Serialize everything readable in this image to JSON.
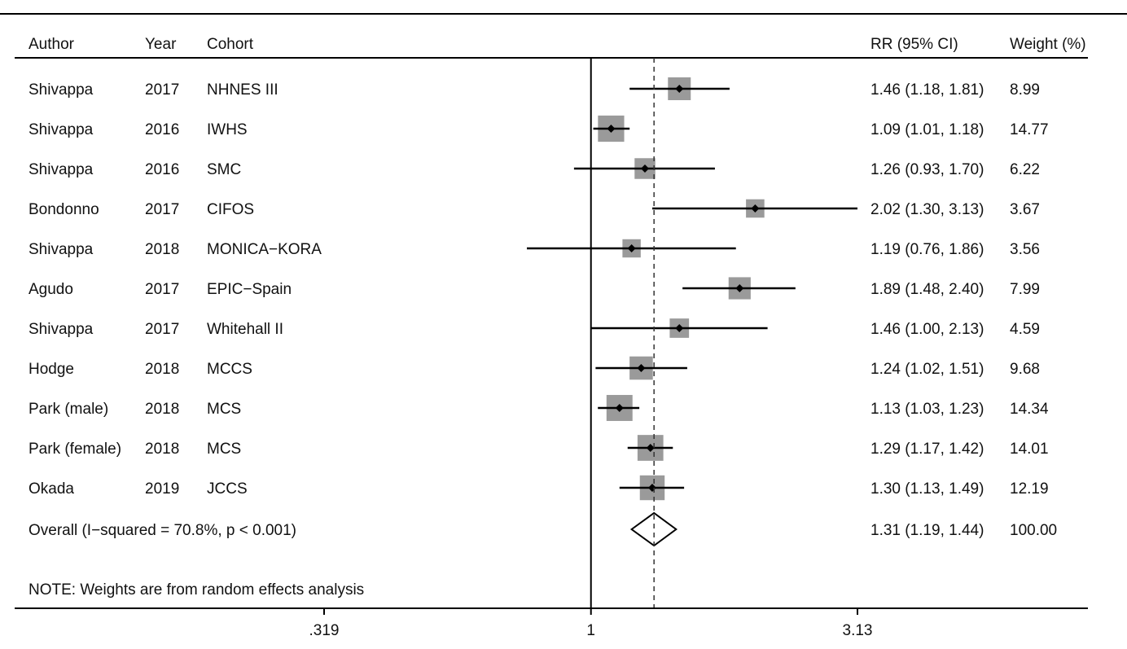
{
  "chart_data": {
    "type": "forest",
    "headers": {
      "author": "Author",
      "year": "Year",
      "cohort": "Cohort",
      "rr": "RR (95% CI)",
      "weight": "Weight (%)"
    },
    "studies": [
      {
        "author": "Shivappa",
        "year": "2017",
        "cohort": "NHNES III",
        "rr": 1.46,
        "lo": 1.18,
        "hi": 1.81,
        "rr_text": "1.46 (1.18, 1.81)",
        "weight": 8.99,
        "weight_text": "8.99"
      },
      {
        "author": "Shivappa",
        "year": "2016",
        "cohort": "IWHS",
        "rr": 1.09,
        "lo": 1.01,
        "hi": 1.18,
        "rr_text": "1.09 (1.01, 1.18)",
        "weight": 14.77,
        "weight_text": "14.77"
      },
      {
        "author": "Shivappa",
        "year": "2016",
        "cohort": "SMC",
        "rr": 1.26,
        "lo": 0.93,
        "hi": 1.7,
        "rr_text": "1.26 (0.93, 1.70)",
        "weight": 6.22,
        "weight_text": "6.22"
      },
      {
        "author": "Bondonno",
        "year": "2017",
        "cohort": "CIFOS",
        "rr": 2.02,
        "lo": 1.3,
        "hi": 3.13,
        "rr_text": "2.02 (1.30, 3.13)",
        "weight": 3.67,
        "weight_text": "3.67"
      },
      {
        "author": "Shivappa",
        "year": "2018",
        "cohort": "MONICA−KORA",
        "rr": 1.19,
        "lo": 0.76,
        "hi": 1.86,
        "rr_text": "1.19 (0.76, 1.86)",
        "weight": 3.56,
        "weight_text": "3.56"
      },
      {
        "author": "Agudo",
        "year": "2017",
        "cohort": "EPIC−Spain",
        "rr": 1.89,
        "lo": 1.48,
        "hi": 2.4,
        "rr_text": "1.89 (1.48, 2.40)",
        "weight": 7.99,
        "weight_text": "7.99"
      },
      {
        "author": "Shivappa",
        "year": "2017",
        "cohort": "Whitehall II",
        "rr": 1.46,
        "lo": 1.0,
        "hi": 2.13,
        "rr_text": "1.46 (1.00, 2.13)",
        "weight": 4.59,
        "weight_text": "4.59"
      },
      {
        "author": "Hodge",
        "year": "2018",
        "cohort": "MCCS",
        "rr": 1.24,
        "lo": 1.02,
        "hi": 1.51,
        "rr_text": "1.24 (1.02, 1.51)",
        "weight": 9.68,
        "weight_text": "9.68"
      },
      {
        "author": "Park (male)",
        "year": "2018",
        "cohort": "MCS",
        "rr": 1.13,
        "lo": 1.03,
        "hi": 1.23,
        "rr_text": "1.13 (1.03, 1.23)",
        "weight": 14.34,
        "weight_text": "14.34"
      },
      {
        "author": "Park (female)",
        "year": "2018",
        "cohort": "MCS",
        "rr": 1.29,
        "lo": 1.17,
        "hi": 1.42,
        "rr_text": "1.29 (1.17, 1.42)",
        "weight": 14.01,
        "weight_text": "14.01"
      },
      {
        "author": "Okada",
        "year": "2019",
        "cohort": "JCCS",
        "rr": 1.3,
        "lo": 1.13,
        "hi": 1.49,
        "rr_text": "1.30 (1.13, 1.49)",
        "weight": 12.19,
        "weight_text": "12.19"
      }
    ],
    "overall": {
      "label": "Overall  (I−squared = 70.8%, p < 0.001)",
      "rr": 1.31,
      "lo": 1.19,
      "hi": 1.44,
      "rr_text": "1.31 (1.19, 1.44)",
      "weight_text": "100.00"
    },
    "note": "NOTE: Weights are from random effects analysis",
    "x_scale": "log",
    "xlim": [
      0.319,
      3.13
    ],
    "null_value": 1,
    "x_ticks": [
      {
        "value": 0.319,
        "label": ".319"
      },
      {
        "value": 1,
        "label": "1"
      },
      {
        "value": 3.13,
        "label": "3.13"
      }
    ],
    "colors": {
      "weight_box": "#9a9a9a",
      "lines": "#000000"
    }
  }
}
